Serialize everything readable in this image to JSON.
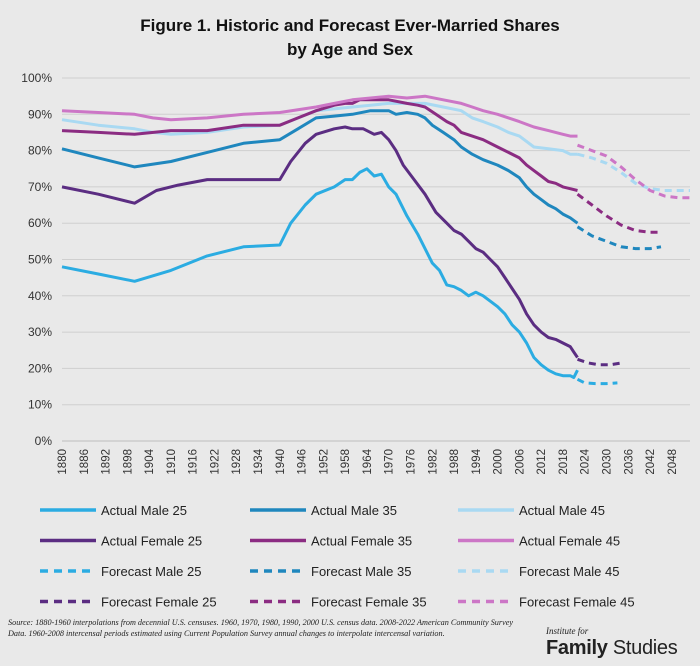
{
  "chart_data": {
    "type": "line",
    "title_line1": "Figure 1. Historic and Forecast Ever-Married Shares",
    "title_line2": "by Age and Sex",
    "xlabel": "",
    "ylabel": "",
    "x_ticks": [
      1880,
      1886,
      1892,
      1898,
      1904,
      1910,
      1916,
      1922,
      1928,
      1934,
      1940,
      1946,
      1952,
      1958,
      1964,
      1970,
      1976,
      1982,
      1988,
      1994,
      2000,
      2006,
      2012,
      2018,
      2024,
      2030,
      2036,
      2042,
      2048
    ],
    "y_ticks": [
      "0%",
      "10%",
      "20%",
      "30%",
      "40%",
      "50%",
      "60%",
      "70%",
      "80%",
      "90%",
      "100%"
    ],
    "ylim": [
      0,
      100
    ],
    "xlim": [
      1880,
      2053
    ],
    "grid": true,
    "legend_position": "bottom",
    "series": [
      {
        "name": "Actual Male 25",
        "color": "#2bace2",
        "style": "solid",
        "points": [
          [
            1880,
            48
          ],
          [
            1890,
            46
          ],
          [
            1900,
            44
          ],
          [
            1910,
            47
          ],
          [
            1920,
            51
          ],
          [
            1930,
            53.5
          ],
          [
            1940,
            54
          ],
          [
            1943,
            60
          ],
          [
            1947,
            65
          ],
          [
            1950,
            68
          ],
          [
            1955,
            70
          ],
          [
            1958,
            72
          ],
          [
            1960,
            72
          ],
          [
            1962,
            74
          ],
          [
            1964,
            75
          ],
          [
            1966,
            73
          ],
          [
            1968,
            73.5
          ],
          [
            1970,
            70
          ],
          [
            1972,
            68
          ],
          [
            1975,
            62
          ],
          [
            1978,
            57
          ],
          [
            1980,
            53
          ],
          [
            1982,
            49
          ],
          [
            1984,
            47
          ],
          [
            1986,
            43
          ],
          [
            1988,
            42.5
          ],
          [
            1990,
            41.5
          ],
          [
            1992,
            40
          ],
          [
            1994,
            41
          ],
          [
            1996,
            40
          ],
          [
            1998,
            38.5
          ],
          [
            2000,
            37
          ],
          [
            2002,
            35
          ],
          [
            2004,
            32
          ],
          [
            2006,
            30
          ],
          [
            2008,
            27
          ],
          [
            2010,
            23
          ],
          [
            2012,
            21
          ],
          [
            2014,
            19.5
          ],
          [
            2016,
            18.5
          ],
          [
            2018,
            18
          ],
          [
            2020,
            18
          ],
          [
            2021,
            17.5
          ],
          [
            2022,
            19.5
          ]
        ]
      },
      {
        "name": "Actual Male 35",
        "color": "#1f87be",
        "style": "solid",
        "points": [
          [
            1880,
            80.5
          ],
          [
            1890,
            78
          ],
          [
            1900,
            75.5
          ],
          [
            1910,
            77
          ],
          [
            1920,
            79.5
          ],
          [
            1930,
            82
          ],
          [
            1940,
            83
          ],
          [
            1945,
            86
          ],
          [
            1950,
            89
          ],
          [
            1955,
            89.5
          ],
          [
            1960,
            90
          ],
          [
            1965,
            91
          ],
          [
            1970,
            91
          ],
          [
            1972,
            90
          ],
          [
            1975,
            90.5
          ],
          [
            1978,
            90
          ],
          [
            1980,
            89
          ],
          [
            1982,
            87
          ],
          [
            1985,
            85
          ],
          [
            1988,
            83
          ],
          [
            1990,
            81
          ],
          [
            1993,
            79
          ],
          [
            1996,
            77.5
          ],
          [
            2000,
            76
          ],
          [
            2003,
            74.5
          ],
          [
            2006,
            72.5
          ],
          [
            2008,
            70
          ],
          [
            2010,
            68
          ],
          [
            2012,
            66.5
          ],
          [
            2014,
            65
          ],
          [
            2016,
            64
          ],
          [
            2018,
            62.5
          ],
          [
            2020,
            61.5
          ],
          [
            2022,
            60
          ]
        ]
      },
      {
        "name": "Actual Male 45",
        "color": "#a9d9f2",
        "style": "solid",
        "points": [
          [
            1880,
            88.5
          ],
          [
            1890,
            87
          ],
          [
            1900,
            86
          ],
          [
            1905,
            85
          ],
          [
            1910,
            84.5
          ],
          [
            1920,
            85
          ],
          [
            1930,
            86.5
          ],
          [
            1940,
            87
          ],
          [
            1950,
            91
          ],
          [
            1960,
            92
          ],
          [
            1965,
            92.5
          ],
          [
            1970,
            93
          ],
          [
            1975,
            93
          ],
          [
            1980,
            93
          ],
          [
            1985,
            92
          ],
          [
            1990,
            91
          ],
          [
            1993,
            89
          ],
          [
            1996,
            88
          ],
          [
            2000,
            86.5
          ],
          [
            2003,
            85
          ],
          [
            2006,
            84
          ],
          [
            2010,
            81
          ],
          [
            2014,
            80.5
          ],
          [
            2018,
            80
          ],
          [
            2020,
            79
          ],
          [
            2022,
            79
          ]
        ]
      },
      {
        "name": "Actual Female 25",
        "color": "#5b2d82",
        "style": "solid",
        "points": [
          [
            1880,
            70
          ],
          [
            1890,
            68
          ],
          [
            1900,
            65.5
          ],
          [
            1906,
            69
          ],
          [
            1912,
            70.5
          ],
          [
            1920,
            72
          ],
          [
            1930,
            72
          ],
          [
            1935,
            72
          ],
          [
            1940,
            72
          ],
          [
            1943,
            77
          ],
          [
            1947,
            82
          ],
          [
            1950,
            84.5
          ],
          [
            1955,
            86
          ],
          [
            1958,
            86.5
          ],
          [
            1960,
            86
          ],
          [
            1963,
            86
          ],
          [
            1966,
            84.5
          ],
          [
            1968,
            85
          ],
          [
            1970,
            83
          ],
          [
            1972,
            80
          ],
          [
            1974,
            76
          ],
          [
            1977,
            72
          ],
          [
            1980,
            68
          ],
          [
            1983,
            63
          ],
          [
            1986,
            60
          ],
          [
            1988,
            58
          ],
          [
            1990,
            57
          ],
          [
            1992,
            55
          ],
          [
            1994,
            53
          ],
          [
            1996,
            52
          ],
          [
            1998,
            50
          ],
          [
            2000,
            48
          ],
          [
            2002,
            45
          ],
          [
            2004,
            42
          ],
          [
            2006,
            39
          ],
          [
            2008,
            35
          ],
          [
            2010,
            32
          ],
          [
            2012,
            30
          ],
          [
            2014,
            28.5
          ],
          [
            2016,
            28
          ],
          [
            2018,
            27
          ],
          [
            2020,
            26
          ],
          [
            2021,
            24.5
          ],
          [
            2022,
            23
          ]
        ]
      },
      {
        "name": "Actual Female 35",
        "color": "#8b2c82",
        "style": "solid",
        "points": [
          [
            1880,
            85.5
          ],
          [
            1890,
            85
          ],
          [
            1900,
            84.5
          ],
          [
            1910,
            85.5
          ],
          [
            1920,
            85.5
          ],
          [
            1930,
            87
          ],
          [
            1940,
            87
          ],
          [
            1945,
            89
          ],
          [
            1950,
            91
          ],
          [
            1955,
            92.5
          ],
          [
            1958,
            93
          ],
          [
            1960,
            93
          ],
          [
            1962,
            94
          ],
          [
            1965,
            94
          ],
          [
            1970,
            94
          ],
          [
            1975,
            93
          ],
          [
            1978,
            92.5
          ],
          [
            1980,
            92
          ],
          [
            1983,
            90
          ],
          [
            1986,
            88
          ],
          [
            1988,
            87
          ],
          [
            1990,
            85
          ],
          [
            1993,
            84
          ],
          [
            1996,
            83
          ],
          [
            2000,
            81
          ],
          [
            2003,
            79.5
          ],
          [
            2006,
            78
          ],
          [
            2008,
            76
          ],
          [
            2010,
            74.5
          ],
          [
            2012,
            73
          ],
          [
            2014,
            71.5
          ],
          [
            2016,
            71
          ],
          [
            2018,
            70
          ],
          [
            2020,
            69.5
          ],
          [
            2022,
            69
          ]
        ]
      },
      {
        "name": "Actual Female 45",
        "color": "#cc76c6",
        "style": "solid",
        "points": [
          [
            1880,
            91
          ],
          [
            1890,
            90.5
          ],
          [
            1900,
            90
          ],
          [
            1905,
            89
          ],
          [
            1910,
            88.5
          ],
          [
            1920,
            89
          ],
          [
            1930,
            90
          ],
          [
            1940,
            90.5
          ],
          [
            1950,
            92
          ],
          [
            1955,
            93
          ],
          [
            1960,
            94
          ],
          [
            1965,
            94.5
          ],
          [
            1970,
            95
          ],
          [
            1975,
            94.5
          ],
          [
            1980,
            95
          ],
          [
            1985,
            94
          ],
          [
            1990,
            93
          ],
          [
            1993,
            92
          ],
          [
            1996,
            91
          ],
          [
            2000,
            90
          ],
          [
            2003,
            89
          ],
          [
            2006,
            88
          ],
          [
            2010,
            86.5
          ],
          [
            2014,
            85.5
          ],
          [
            2018,
            84.5
          ],
          [
            2020,
            84
          ],
          [
            2022,
            84
          ]
        ]
      },
      {
        "name": "Forecast Male 25",
        "color": "#2bace2",
        "style": "dashed",
        "points": [
          [
            2022,
            17
          ],
          [
            2024,
            16
          ],
          [
            2027,
            15.8
          ],
          [
            2030,
            15.8
          ],
          [
            2033,
            16
          ]
        ]
      },
      {
        "name": "Forecast Male 35",
        "color": "#1f87be",
        "style": "dashed",
        "points": [
          [
            2022,
            59
          ],
          [
            2026,
            56.5
          ],
          [
            2030,
            55
          ],
          [
            2034,
            53.5
          ],
          [
            2038,
            53
          ],
          [
            2042,
            53
          ],
          [
            2045,
            53.5
          ]
        ]
      },
      {
        "name": "Forecast Male 45",
        "color": "#a9d9f2",
        "style": "dashed",
        "points": [
          [
            2022,
            79
          ],
          [
            2026,
            78
          ],
          [
            2030,
            76.5
          ],
          [
            2034,
            74
          ],
          [
            2038,
            71
          ],
          [
            2042,
            69.5
          ],
          [
            2046,
            69
          ],
          [
            2050,
            69
          ],
          [
            2053,
            69
          ]
        ]
      },
      {
        "name": "Forecast Female 25",
        "color": "#5b2d82",
        "style": "dashed",
        "points": [
          [
            2022,
            22.5
          ],
          [
            2025,
            21.5
          ],
          [
            2028,
            21
          ],
          [
            2031,
            21
          ],
          [
            2034,
            21.5
          ]
        ]
      },
      {
        "name": "Forecast Female 35",
        "color": "#8b2c82",
        "style": "dashed",
        "points": [
          [
            2022,
            68
          ],
          [
            2026,
            65
          ],
          [
            2030,
            62
          ],
          [
            2034,
            59.5
          ],
          [
            2038,
            58
          ],
          [
            2042,
            57.5
          ],
          [
            2045,
            57.5
          ]
        ]
      },
      {
        "name": "Forecast Female 45",
        "color": "#cc76c6",
        "style": "dashed",
        "points": [
          [
            2022,
            81.5
          ],
          [
            2026,
            80
          ],
          [
            2030,
            78.5
          ],
          [
            2034,
            75.5
          ],
          [
            2038,
            72
          ],
          [
            2042,
            69
          ],
          [
            2046,
            67.5
          ],
          [
            2050,
            67
          ],
          [
            2053,
            67
          ]
        ]
      }
    ]
  },
  "source_note": "Source: 1880-1960 interpolations from decennial U.S. censuses. 1960, 1970, 1980, 1990, 2000 U.S. census data. 2008-2022 American Community Survey Data. 1960-2008 intercensal periods estimated using Current Population Survey annual changes to interpolate intercensal variation.",
  "brand": {
    "small": "Institute for",
    "bold": "Family",
    "light": " Studies"
  }
}
